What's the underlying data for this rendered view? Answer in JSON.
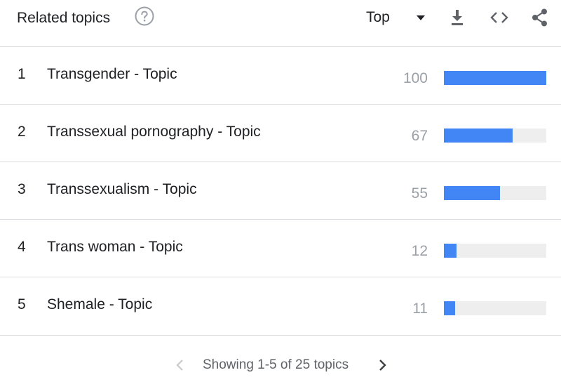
{
  "header": {
    "title": "Related topics",
    "help_icon": "help-circle-icon",
    "select_value": "Top",
    "tools": [
      "download-icon",
      "embed-code-icon",
      "share-icon"
    ]
  },
  "colors": {
    "bar_fill": "#4285f4",
    "bar_track": "#eeeeee",
    "value_text": "#9aa0a6",
    "divider": "#dadce0"
  },
  "rows": [
    {
      "rank": "1",
      "label": "Transgender - Topic",
      "value": "100"
    },
    {
      "rank": "2",
      "label": "Transsexual pornography - Topic",
      "value": "67"
    },
    {
      "rank": "3",
      "label": "Transsexualism - Topic",
      "value": "55"
    },
    {
      "rank": "4",
      "label": "Trans woman - Topic",
      "value": "12"
    },
    {
      "rank": "5",
      "label": "Shemale - Topic",
      "value": "11"
    }
  ],
  "footer": {
    "pager_text": "Showing 1-5 of 25 topics"
  }
}
